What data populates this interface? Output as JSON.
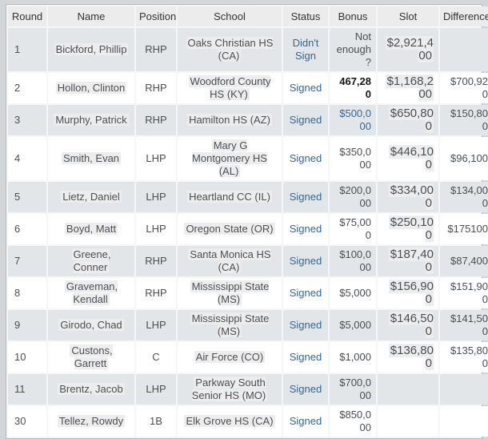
{
  "colors": {
    "page_background": "#d3d6d9",
    "header_background": "#ececec",
    "row_gray": "#e3e6e9",
    "row_white": "#ffffff",
    "link_blue": "#336699",
    "text": "#4a4f54",
    "highlight": "#ededee",
    "border": "#b2b9bf"
  },
  "table": {
    "columns": [
      {
        "key": "round",
        "label": "Round"
      },
      {
        "key": "name",
        "label": "Name"
      },
      {
        "key": "position",
        "label": "Position"
      },
      {
        "key": "school",
        "label": "School"
      },
      {
        "key": "status",
        "label": "Status"
      },
      {
        "key": "bonus",
        "label": "Bonus"
      },
      {
        "key": "slot",
        "label": "Slot"
      },
      {
        "key": "difference",
        "label": "Difference"
      }
    ],
    "rows": [
      {
        "round": "1",
        "name": "Bickford, Phillip",
        "position": "RHP",
        "school": "Oaks Christian HS (CA)",
        "status": "Didn't Sign",
        "bonus": "Not enough?",
        "bonus_variant": "plain",
        "slot": "$2,921,400",
        "difference": ""
      },
      {
        "round": "2",
        "name": "Hollon, Clinton",
        "position": "RHP",
        "school": "Woodford County HS (KY)",
        "status": "Signed",
        "bonus": "467,280",
        "bonus_variant": "bold",
        "slot": "$1,168,200",
        "difference": "$700,920"
      },
      {
        "round": "3",
        "name": "Murphy, Patrick",
        "position": "RHP",
        "school": "Hamilton HS (AZ)",
        "status": "Signed",
        "bonus": "$500,000",
        "bonus_variant": "link",
        "slot": "$650,800",
        "difference": "$150,800"
      },
      {
        "round": "4",
        "name": "Smith, Evan",
        "position": "LHP",
        "school": "Mary G Montgomery HS (AL)",
        "status": "Signed",
        "bonus": "$350,000",
        "bonus_variant": "plain",
        "slot": "$446,100",
        "difference": "$96,100"
      },
      {
        "round": "5",
        "name": "Lietz, Daniel",
        "position": "LHP",
        "school": "Heartland CC (IL)",
        "status": "Signed",
        "bonus": "$200,000",
        "bonus_variant": "plain",
        "slot": "$334,000",
        "difference": "$134,000"
      },
      {
        "round": "6",
        "name": "Boyd, Matt",
        "position": "LHP",
        "school": "Oregon State (OR)",
        "status": "Signed",
        "bonus": "$75,000",
        "bonus_variant": "plain",
        "slot": "$250,100",
        "difference": "$175100"
      },
      {
        "round": "7",
        "name": "Greene, Conner",
        "position": "RHP",
        "school": "Santa Monica HS (CA)",
        "status": "Signed",
        "bonus": "$100,000",
        "bonus_variant": "plain",
        "slot": "$187,400",
        "difference": "$87,400"
      },
      {
        "round": "8",
        "name": "Graveman, Kendall",
        "position": "RHP",
        "school": "Mississippi State (MS)",
        "status": "Signed",
        "bonus": "$5,000",
        "bonus_variant": "plain",
        "slot": "$156,900",
        "difference": "$151,900"
      },
      {
        "round": "9",
        "name": "Girodo, Chad",
        "position": "LHP",
        "school": "Mississippi State (MS)",
        "status": "Signed",
        "bonus": "$5,000",
        "bonus_variant": "plain",
        "slot": "$146,500",
        "difference": "$141,500"
      },
      {
        "round": "10",
        "name": "Custons, Garrett",
        "position": "C",
        "school": "Air Force (CO)",
        "status": "Signed",
        "bonus": "$1,000",
        "bonus_variant": "plain",
        "slot": "$136,800",
        "difference": "$135,800"
      },
      {
        "round": "11",
        "name": "Brentz, Jacob",
        "position": "LHP",
        "school": "Parkway South Senior HS (MO)",
        "status": "Signed",
        "bonus": "$700,000",
        "bonus_variant": "plain",
        "slot": "",
        "difference": ""
      },
      {
        "round": "30",
        "name": "Tellez, Rowdy",
        "position": "1B",
        "school": "Elk Grove HS (CA)",
        "status": "Signed",
        "bonus": "$850,000",
        "bonus_variant": "plain",
        "slot": "",
        "difference": ""
      }
    ]
  }
}
